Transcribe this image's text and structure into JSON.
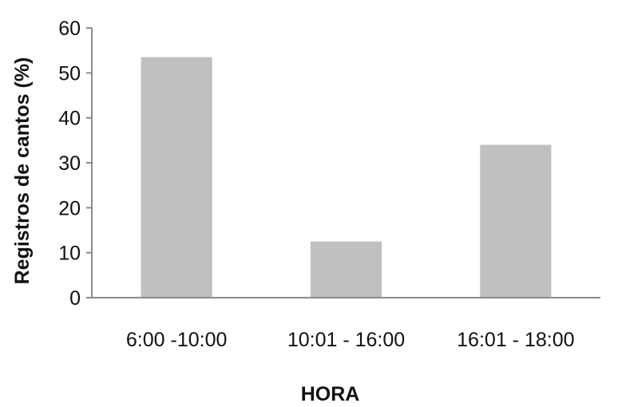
{
  "chart_data": {
    "type": "bar",
    "title": "",
    "categories": [
      "6:00 -10:00",
      "10:01 - 16:00",
      "16:01 - 18:00"
    ],
    "values": [
      53.5,
      12.5,
      34
    ],
    "xlabel": "HORA",
    "ylabel": "Registros de cantos (%)",
    "ylim": [
      0,
      60
    ],
    "yticks": [
      0,
      10,
      20,
      30,
      40,
      50,
      60
    ],
    "grid": false,
    "legend": "none",
    "bar_color": "#c0c0c0",
    "axis_color": "#8c8c8c"
  }
}
